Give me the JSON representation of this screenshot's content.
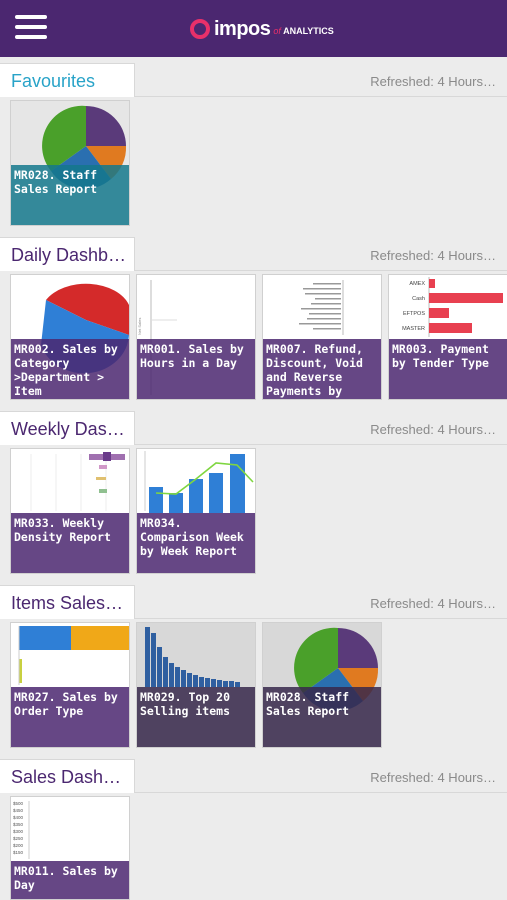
{
  "header": {
    "menu_icon": "hamburger-menu-icon",
    "logo_brand": "impos",
    "logo_of": "of",
    "logo_sub": "ANALYTICS"
  },
  "sections": [
    {
      "title": "Favourites",
      "refresh": "Refreshed: 4 Hours…",
      "tiles": [
        {
          "label": "MR028. Staff Sales Report"
        }
      ]
    },
    {
      "title": "Daily Dashb…",
      "refresh": "Refreshed: 4 Hours…",
      "tiles": [
        {
          "label": "MR002. Sales by Category >Department > Item"
        },
        {
          "label": "MR001. Sales by Hours in a Day"
        },
        {
          "label": "MR007. Refund, Discount, Void and Reverse Payments by Employee"
        },
        {
          "label": "MR003. Payment by Tender Type"
        }
      ]
    },
    {
      "title": "Weekly Das…",
      "refresh": "Refreshed: 4 Hours…",
      "tiles": [
        {
          "label": "MR033. Weekly Density Report"
        },
        {
          "label": "MR034. Comparison Week by Week Report"
        }
      ]
    },
    {
      "title": "Items Sales…",
      "refresh": "Refreshed: 4 Hours…",
      "tiles": [
        {
          "label": "MR027. Sales by Order Type"
        },
        {
          "label": "MR029. Top 20 Selling items"
        },
        {
          "label": "MR028. Staff Sales Report"
        }
      ]
    },
    {
      "title": "Sales Dash…",
      "refresh": "Refreshed: 4 Hours…",
      "tiles": [
        {
          "label": "MR011. Sales by Day"
        }
      ]
    }
  ],
  "thumb_text": {
    "tender_labels": [
      "AMEX",
      "Cash",
      "EFTPOS",
      "MASTER"
    ],
    "day_ticks": [
      "$500",
      "$450",
      "$400",
      "$350",
      "$300",
      "$250",
      "$200",
      "$150"
    ]
  },
  "colors": {
    "header_bg": "#4b2770",
    "accent_pink": "#e8306a",
    "favourites_title": "#28a3c8",
    "section_title": "#4b2770"
  }
}
